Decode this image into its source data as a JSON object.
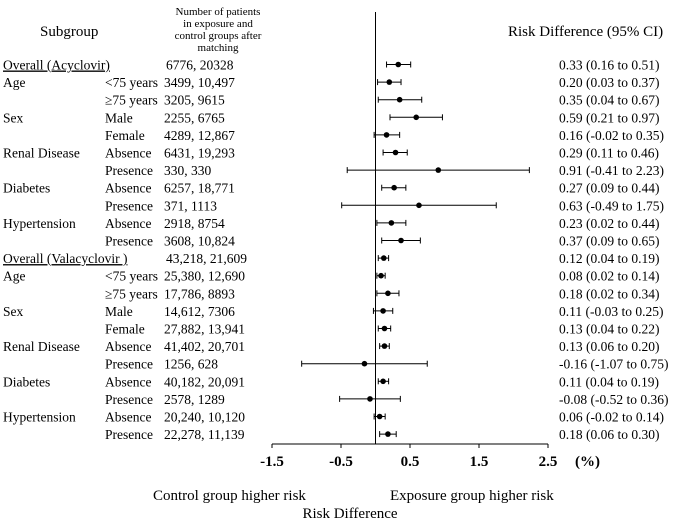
{
  "chart_data": {
    "type": "forest",
    "header_subgroup": "Subgroup",
    "header_patients": [
      "Number of patients",
      "in exposure and",
      "control groups after",
      "matching"
    ],
    "header_ci": "Risk Difference (95% CI)",
    "x_ticks": [
      "-1.5",
      "-0.5",
      "0.5",
      "1.5",
      "2.5"
    ],
    "x_tick_values": [
      -1.5,
      -0.5,
      0.5,
      1.5,
      2.5
    ],
    "x_unit": "(%)",
    "xlim": [
      -1.5,
      2.5
    ],
    "null_line": 0,
    "left_caption": "Control group higher risk",
    "right_caption": "Exposure group higher risk",
    "xlabel": "Risk Difference",
    "rows": [
      {
        "group": "Overall (Acyclovir)",
        "sub": "",
        "n": "6776, 20328",
        "est": 0.33,
        "lo": 0.16,
        "hi": 0.51,
        "ci": "0.33 (0.16 to 0.51)",
        "underline": true
      },
      {
        "group": "Age",
        "sub": "<75 years",
        "n": "3499, 10,497",
        "est": 0.2,
        "lo": 0.03,
        "hi": 0.37,
        "ci": "0.20 (0.03 to 0.37)"
      },
      {
        "group": "",
        "sub": "≥75 years",
        "n": "3205, 9615",
        "est": 0.35,
        "lo": 0.04,
        "hi": 0.67,
        "ci": "0.35 (0.04 to 0.67)"
      },
      {
        "group": "Sex",
        "sub": "Male",
        "n": "2255, 6765",
        "est": 0.59,
        "lo": 0.21,
        "hi": 0.97,
        "ci": "0.59 (0.21 to 0.97)"
      },
      {
        "group": "",
        "sub": "Female",
        "n": "4289, 12,867",
        "est": 0.16,
        "lo": -0.02,
        "hi": 0.35,
        "ci": "0.16 (-0.02 to 0.35)"
      },
      {
        "group": "Renal Disease",
        "sub": "Absence",
        "n": "6431, 19,293",
        "est": 0.29,
        "lo": 0.11,
        "hi": 0.46,
        "ci": "0.29 (0.11 to 0.46)"
      },
      {
        "group": "",
        "sub": "Presence",
        "n": "330, 330",
        "est": 0.91,
        "lo": -0.41,
        "hi": 2.23,
        "ci": "0.91 (-0.41 to 2.23)"
      },
      {
        "group": "Diabetes",
        "sub": "Absence",
        "n": "6257, 18,771",
        "est": 0.27,
        "lo": 0.09,
        "hi": 0.44,
        "ci": "0.27 (0.09 to 0.44)"
      },
      {
        "group": "",
        "sub": "Presence",
        "n": "371, 1113",
        "est": 0.63,
        "lo": -0.49,
        "hi": 1.75,
        "ci": "0.63 (-0.49 to 1.75)"
      },
      {
        "group": "Hypertension",
        "sub": "Absence",
        "n": "2918, 8754",
        "est": 0.23,
        "lo": 0.02,
        "hi": 0.44,
        "ci": "0.23 (0.02 to 0.44)"
      },
      {
        "group": "",
        "sub": "Presence",
        "n": "3608, 10,824",
        "est": 0.37,
        "lo": 0.09,
        "hi": 0.65,
        "ci": "0.37 (0.09 to 0.65)"
      },
      {
        "group": "Overall (Valacyclovir )",
        "sub": "",
        "n": "43,218, 21,609",
        "est": 0.12,
        "lo": 0.04,
        "hi": 0.19,
        "ci": "0.12 (0.04 to 0.19)",
        "underline": true
      },
      {
        "group": "Age",
        "sub": "<75 years",
        "n": "25,380, 12,690",
        "est": 0.08,
        "lo": 0.02,
        "hi": 0.14,
        "ci": "0.08 (0.02 to 0.14)"
      },
      {
        "group": "",
        "sub": "≥75 years",
        "n": "17,786, 8893",
        "est": 0.18,
        "lo": 0.02,
        "hi": 0.34,
        "ci": "0.18 (0.02 to 0.34)"
      },
      {
        "group": "Sex",
        "sub": "Male",
        "n": "14,612, 7306",
        "est": 0.11,
        "lo": -0.03,
        "hi": 0.25,
        "ci": "0.11 (-0.03 to 0.25)"
      },
      {
        "group": "",
        "sub": "Female",
        "n": "27,882, 13,941",
        "est": 0.13,
        "lo": 0.04,
        "hi": 0.22,
        "ci": "0.13 (0.04 to 0.22)"
      },
      {
        "group": "Renal Disease",
        "sub": "Absence",
        "n": "41,402, 20,701",
        "est": 0.13,
        "lo": 0.06,
        "hi": 0.2,
        "ci": "0.13 (0.06 to 0.20)"
      },
      {
        "group": "",
        "sub": "Presence",
        "n": "1256, 628",
        "est": -0.16,
        "lo": -1.07,
        "hi": 0.75,
        "ci": "-0.16 (-1.07 to 0.75)"
      },
      {
        "group": "Diabetes",
        "sub": "Absence",
        "n": "40,182, 20,091",
        "est": 0.11,
        "lo": 0.04,
        "hi": 0.19,
        "ci": "0.11 (0.04 to 0.19)"
      },
      {
        "group": "",
        "sub": "Presence",
        "n": "2578, 1289",
        "est": -0.08,
        "lo": -0.52,
        "hi": 0.36,
        "ci": "-0.08 (-0.52 to 0.36)"
      },
      {
        "group": "Hypertension",
        "sub": "Absence",
        "n": "20,240, 10,120",
        "est": 0.06,
        "lo": -0.02,
        "hi": 0.14,
        "ci": "0.06 (-0.02 to 0.14)"
      },
      {
        "group": "",
        "sub": "Presence",
        "n": "22,278, 11,139",
        "est": 0.18,
        "lo": 0.06,
        "hi": 0.3,
        "ci": "0.18 (0.06 to 0.30)"
      }
    ]
  }
}
